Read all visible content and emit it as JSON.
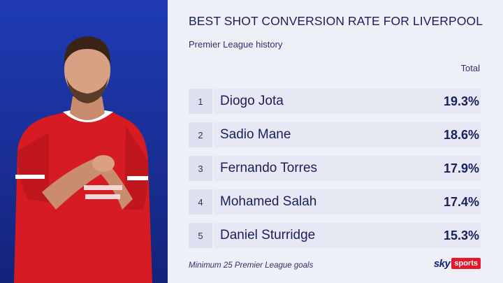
{
  "header": {
    "title": "BEST SHOT CONVERSION RATE FOR LIVERPOOL",
    "subtitle": "Premier League history",
    "column_label": "Total"
  },
  "rows": [
    {
      "rank": "1",
      "name": "Diogo Jota",
      "value": "19.3%"
    },
    {
      "rank": "2",
      "name": "Sadio Mane",
      "value": "18.6%"
    },
    {
      "rank": "3",
      "name": "Fernando Torres",
      "value": "17.9%"
    },
    {
      "rank": "4",
      "name": "Mohamed Salah",
      "value": "17.4%"
    },
    {
      "rank": "5",
      "name": "Daniel Sturridge",
      "value": "15.3%"
    }
  ],
  "footer": {
    "note": "Minimum 25 Premier League goals",
    "logo_sky": "sky",
    "logo_sports": "sports"
  },
  "colors": {
    "panel_blue": "#1f3bb3",
    "text_navy": "#16205c",
    "shirt_red": "#d71b22"
  }
}
